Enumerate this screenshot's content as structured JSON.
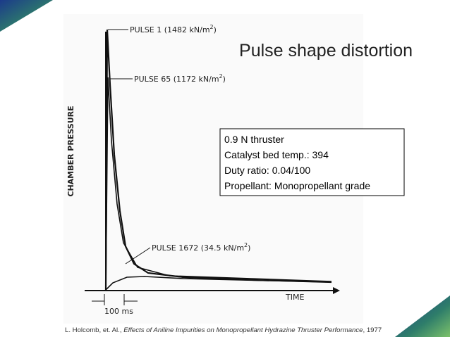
{
  "slide": {
    "title": "Pulse shape distortion",
    "info_box": [
      "0.9 N thruster",
      "Catalyst bed temp.: 394",
      "Duty ratio: 0.04/100",
      "Propellant: Monopropellant grade"
    ],
    "figure": {
      "y_axis_label": "CHAMBER PRESSURE",
      "x_axis_label": "TIME",
      "scale_label": "100 ms",
      "pulse_labels": [
        {
          "text": "PULSE 1 (1482 kN/m",
          "sup": "2",
          "close": ")"
        },
        {
          "text": "PULSE 65 (1172 kN/m",
          "sup": "2",
          "close": ")"
        },
        {
          "text": "PULSE 1672 (34.5 kN/m",
          "sup": "2",
          "close": ")"
        }
      ]
    },
    "citation": {
      "prefix": "L. Holcomb, et. Al., ",
      "work": "Effects of Aniline Impurities on Monopropellant Hydrazine Thruster Performance",
      "suffix": ", 1977"
    }
  }
}
